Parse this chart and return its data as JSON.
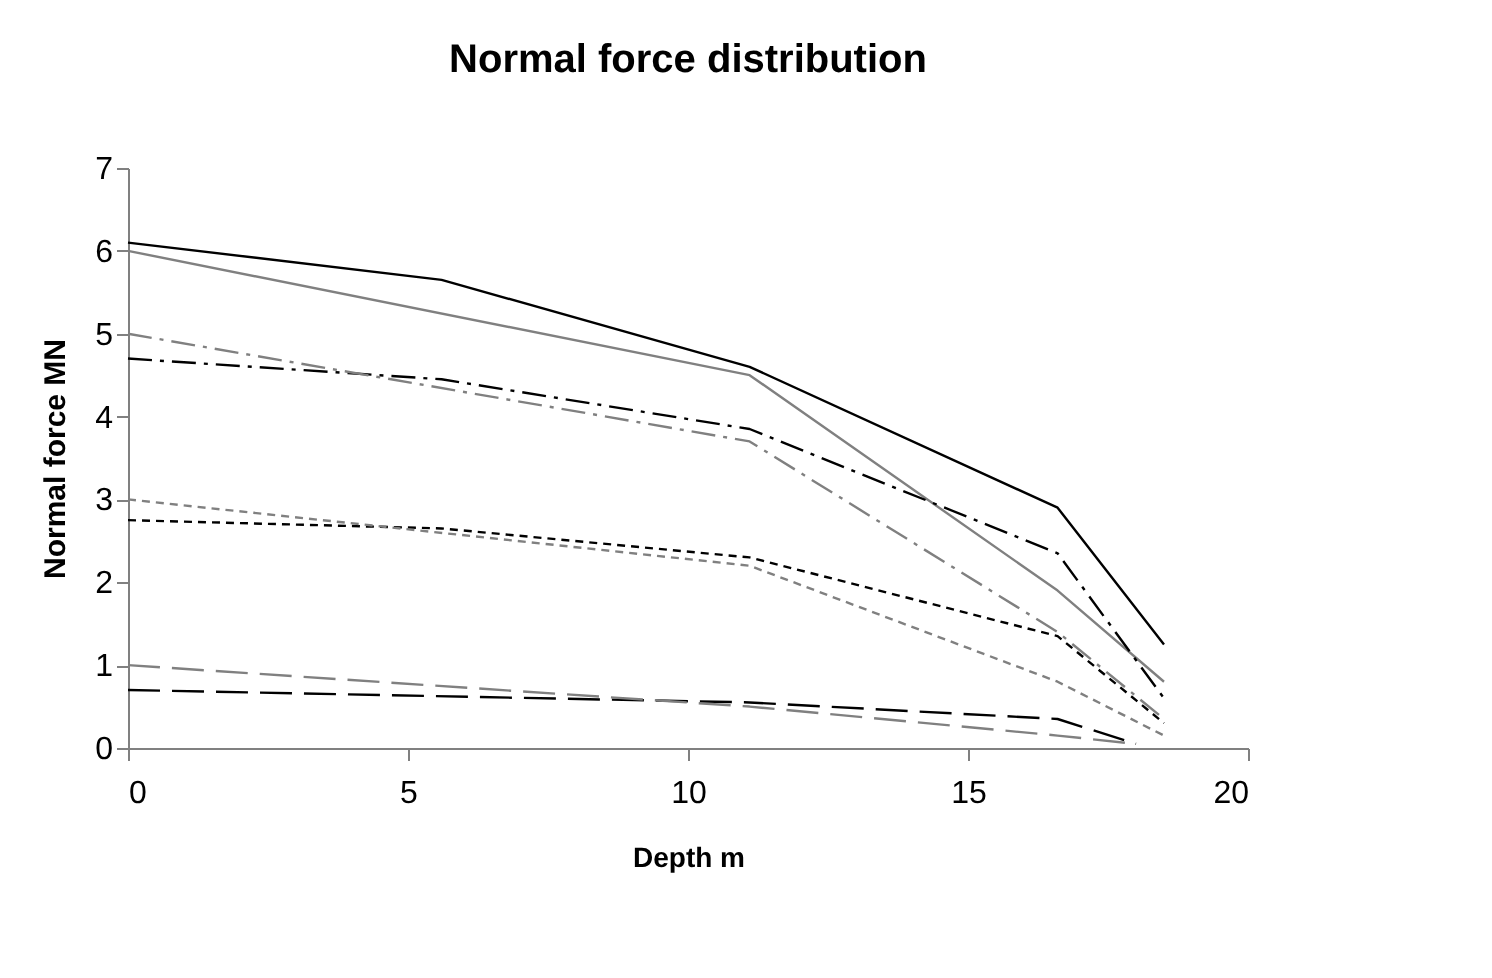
{
  "chart_data": {
    "type": "line",
    "title": "Normal force distribution",
    "xlabel": "Depth  m",
    "ylabel": "Normal force  MN",
    "xlim": [
      0,
      20
    ],
    "xticks": [
      0,
      5,
      10,
      15,
      20
    ],
    "ylim": [
      0,
      7
    ],
    "yticks": [
      0,
      1,
      2,
      3,
      4,
      5,
      6,
      7
    ],
    "grid": false,
    "marker": "none",
    "series": [
      {
        "color": "#000000",
        "line_style": "solid",
        "x": [
          0,
          5.6,
          11.1,
          16.6,
          18.5
        ],
        "values": [
          6.1,
          5.65,
          4.6,
          2.9,
          1.25
        ]
      },
      {
        "color": "#808080",
        "line_style": "solid",
        "x": [
          0,
          11.1,
          16.6,
          18.5
        ],
        "values": [
          6.0,
          4.5,
          1.9,
          0.8
        ]
      },
      {
        "color": "#000000",
        "line_style": "dashdot",
        "x": [
          0,
          5.6,
          11.1,
          16.6,
          18.5
        ],
        "values": [
          4.7,
          4.45,
          3.85,
          2.35,
          0.6
        ]
      },
      {
        "color": "#808080",
        "line_style": "dashdot",
        "x": [
          0,
          11.1,
          16.6,
          18.5
        ],
        "values": [
          5.0,
          3.7,
          1.4,
          0.35
        ]
      },
      {
        "color": "#000000",
        "line_style": "dashed",
        "x": [
          0,
          5.6,
          11.1,
          16.6,
          18.5
        ],
        "values": [
          2.75,
          2.65,
          2.3,
          1.35,
          0.3
        ]
      },
      {
        "color": "#808080",
        "line_style": "dashed",
        "x": [
          0,
          11.1,
          16.6,
          18.5
        ],
        "values": [
          3.0,
          2.2,
          0.8,
          0.15
        ]
      },
      {
        "color": "#000000",
        "line_style": "longdash",
        "x": [
          0,
          11.1,
          16.6,
          18.0
        ],
        "values": [
          0.7,
          0.55,
          0.35,
          0.05
        ]
      },
      {
        "color": "#808080",
        "line_style": "longdash",
        "x": [
          0,
          11.1,
          16.6,
          18.0
        ],
        "values": [
          1.0,
          0.5,
          0.15,
          0.05
        ]
      }
    ]
  }
}
